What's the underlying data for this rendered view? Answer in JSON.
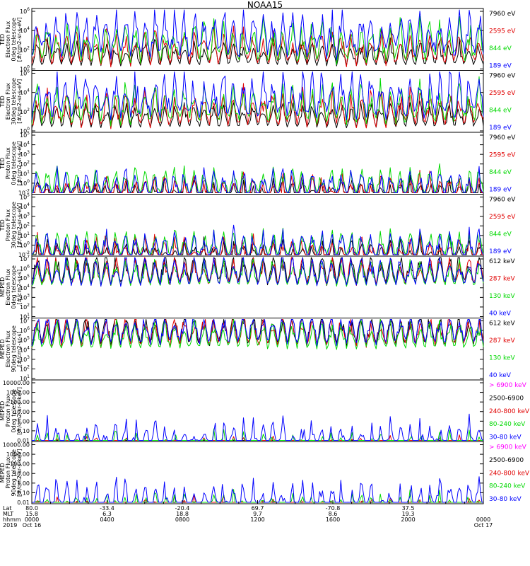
{
  "title": "NOAA15",
  "colors": {
    "black": "#000000",
    "red": "#e00000",
    "green": "#00d800",
    "blue": "#0000ff",
    "magenta": "#ff00ff"
  },
  "chart_data": [
    {
      "type": "line",
      "ylabel_lines": [
        "TED",
        "Electron Flux",
        "0deg telescope",
        "[#/cm2-sr-s-eV]"
      ],
      "ylim": [
        1,
        1000000
      ],
      "ticks": [
        "10^0",
        "10^2",
        "10^4",
        "10^6"
      ],
      "series": [
        {
          "name": "7960 eV",
          "color": "black",
          "base": 0.3,
          "amp": 0.0
        },
        {
          "name": "2595 eV",
          "color": "red",
          "base": 0.5,
          "amp": 0.45
        },
        {
          "name": "844 eV",
          "color": "green",
          "base": 0.9,
          "amp": 0.6
        },
        {
          "name": "189 eV",
          "color": "blue",
          "base": 1.5,
          "amp": 0.9
        }
      ]
    },
    {
      "type": "line",
      "ylabel_lines": [
        "TED",
        "Electron Flux",
        "30deg telescope",
        "[#/cm2-sr-s-eV]"
      ],
      "ylim": [
        1,
        1000000
      ],
      "ticks": [
        "10^0",
        "10^2",
        "10^4",
        "10^6"
      ],
      "series": [
        {
          "name": "7960 eV",
          "color": "black",
          "base": 0.3,
          "amp": 0.0
        },
        {
          "name": "2595 eV",
          "color": "red",
          "base": 0.5,
          "amp": 0.45
        },
        {
          "name": "844 eV",
          "color": "green",
          "base": 0.9,
          "amp": 0.6
        },
        {
          "name": "189 eV",
          "color": "blue",
          "base": 1.5,
          "amp": 0.9
        }
      ]
    },
    {
      "type": "line",
      "ylabel_lines": [
        "TED",
        "Proton Flux",
        "0deg telescope",
        "[#/cm2-sr-s-eV]"
      ],
      "ylim": [
        0.01,
        100000
      ],
      "ticks": [
        "10^-2",
        "10^0",
        "10^1",
        "10^2",
        "10^3",
        "10^4",
        "10^5"
      ],
      "series": [
        {
          "name": "7960 eV",
          "color": "black",
          "base": 0.55,
          "amp": 0.25
        },
        {
          "name": "2595 eV",
          "color": "red",
          "base": 0.9,
          "amp": 0.3
        },
        {
          "name": "844 eV",
          "color": "green",
          "base": 1.7,
          "amp": 0.3
        },
        {
          "name": "189 eV",
          "color": "blue",
          "base": 1.3,
          "amp": 0.4
        }
      ]
    },
    {
      "type": "line",
      "ylabel_lines": [
        "TED",
        "Proton Flux",
        "30deg telescope",
        "[#/cm2-sr-s-eV]"
      ],
      "ylim": [
        0.01,
        100000
      ],
      "ticks": [
        "10^-2",
        "10^0",
        "10^1",
        "10^2",
        "10^3",
        "10^4",
        "10^5"
      ],
      "series": [
        {
          "name": "7960 eV",
          "color": "black",
          "base": 0.55,
          "amp": 0.25
        },
        {
          "name": "2595 eV",
          "color": "red",
          "base": 0.9,
          "amp": 0.3
        },
        {
          "name": "844 eV",
          "color": "green",
          "base": 1.7,
          "amp": 0.3
        },
        {
          "name": "189 eV",
          "color": "blue",
          "base": 1.3,
          "amp": 0.4
        }
      ]
    },
    {
      "type": "line",
      "ylabel_lines": [
        "MEPED",
        "Electron Flux",
        "0deg telescope",
        "[#/cm2-sr-s]"
      ],
      "ylim": [
        10,
        10000000
      ],
      "ticks": [
        "10^1",
        "10^2",
        "10^3",
        "10^4",
        "10^5",
        "10^6",
        "10^7"
      ],
      "series": [
        {
          "name": "612 keV",
          "color": "black",
          "base": 2.3,
          "amp": 0.3
        },
        {
          "name": "287 keV",
          "color": "red",
          "base": 2.2,
          "amp": 0.15
        },
        {
          "name": "130 keV",
          "color": "green",
          "base": 2.1,
          "amp": 0.1
        },
        {
          "name": "40 keV",
          "color": "blue",
          "base": 2.2,
          "amp": 0.2
        }
      ]
    },
    {
      "type": "line",
      "ylabel_lines": [
        "MEPED",
        "Electron Flux",
        "90deg telescope",
        "[#/cm2-sr-s]"
      ],
      "ylim": [
        10,
        10000000
      ],
      "ticks": [
        "10^1",
        "10^2",
        "10^3",
        "10^4",
        "10^5",
        "10^6",
        "10^7"
      ],
      "series": [
        {
          "name": "612 keV",
          "color": "black",
          "base": 2.4,
          "amp": 0.4
        },
        {
          "name": "287 keV",
          "color": "red",
          "base": 2.3,
          "amp": 0.3
        },
        {
          "name": "130 keV",
          "color": "green",
          "base": 2.0,
          "amp": 0.2
        },
        {
          "name": "40 keV",
          "color": "blue",
          "base": 2.5,
          "amp": 0.4
        }
      ]
    },
    {
      "type": "line",
      "ylabel_lines": [
        "MEPED",
        "Proton Flux",
        "0deg telescope",
        "[#/cm2-sr-s-keV]"
      ],
      "ylim": [
        0.01,
        10000
      ],
      "ticks": [
        "0.01",
        "0.10",
        "1.00",
        "10.00",
        "100.00",
        "1000.00",
        "10000.00"
      ],
      "series": [
        {
          "name": "> 6900 keV",
          "color": "magenta",
          "base": -1.6,
          "amp": 0.1
        },
        {
          "name": "2500-6900",
          "color": "black",
          "base": -1.4,
          "amp": 0.1
        },
        {
          "name": "240-800 keV",
          "color": "red",
          "base": -0.6,
          "amp": 0.1
        },
        {
          "name": "80-240 keV",
          "color": "green",
          "base": 0.0,
          "amp": 0.1
        },
        {
          "name": "30-80 keV",
          "color": "blue",
          "base": 0.6,
          "amp": 0.4
        }
      ]
    },
    {
      "type": "line",
      "ylabel_lines": [
        "MEPED",
        "Proton Flux",
        "90deg telescope",
        "[#/cm2-sr-s-keV]"
      ],
      "ylim": [
        0.01,
        10000
      ],
      "ticks": [
        "0.01",
        "0.10",
        "1.00",
        "10.00",
        "100.00",
        "1000.00",
        "10000.00"
      ],
      "series": [
        {
          "name": "> 6900 keV",
          "color": "magenta",
          "base": -1.5,
          "amp": 0.1
        },
        {
          "name": "2500-6900",
          "color": "black",
          "base": -1.2,
          "amp": 0.1
        },
        {
          "name": "240-800 keV",
          "color": "red",
          "base": -0.5,
          "amp": 0.15
        },
        {
          "name": "80-240 keV",
          "color": "green",
          "base": 0.0,
          "amp": 0.15
        },
        {
          "name": "30-80 keV",
          "color": "blue",
          "base": 0.6,
          "amp": 0.5
        }
      ]
    }
  ],
  "xaxis": {
    "row_labels": [
      "Lat",
      "MLT",
      "hhmm",
      "2019"
    ],
    "columns": [
      {
        "lat": "80.0",
        "mlt": "15.8",
        "hhmm": "0000",
        "date": "Oct 16"
      },
      {
        "lat": "-33.4",
        "mlt": "6.3",
        "hhmm": "0400",
        "date": ""
      },
      {
        "lat": "-20.4",
        "mlt": "18.8",
        "hhmm": "0800",
        "date": ""
      },
      {
        "lat": "69.7",
        "mlt": "9.7",
        "hhmm": "1200",
        "date": ""
      },
      {
        "lat": "-70.8",
        "mlt": "8.6",
        "hhmm": "1600",
        "date": ""
      },
      {
        "lat": "37.5",
        "mlt": "19.3",
        "hhmm": "2000",
        "date": ""
      },
      {
        "lat": "",
        "mlt": "",
        "hhmm": "0000",
        "date": "Oct 17"
      }
    ]
  }
}
